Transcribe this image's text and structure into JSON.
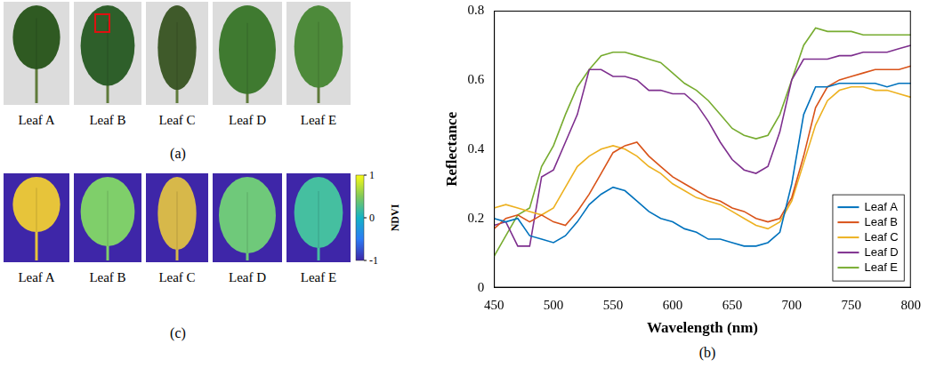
{
  "figure": {
    "a": {
      "label": "(a)",
      "leaves": [
        "Leaf A",
        "Leaf B",
        "Leaf C",
        "Leaf D",
        "Leaf E"
      ]
    },
    "c": {
      "label": "(c)",
      "leaves": [
        "Leaf A",
        "Leaf B",
        "Leaf C",
        "Leaf D",
        "Leaf E"
      ],
      "colorbar": {
        "title": "NDVI",
        "range": [
          -1,
          1
        ],
        "ticks": [
          -1,
          0,
          1
        ]
      }
    }
  },
  "chart_data": {
    "type": "line",
    "panel_label": "(b)",
    "x_label": "Wavelength (nm)",
    "y_label": "Reflectance",
    "x": [
      450,
      460,
      470,
      480,
      490,
      500,
      510,
      520,
      530,
      540,
      550,
      560,
      570,
      580,
      590,
      600,
      610,
      620,
      630,
      640,
      650,
      660,
      670,
      680,
      690,
      700,
      710,
      720,
      730,
      740,
      750,
      760,
      770,
      780,
      790,
      800
    ],
    "series": [
      {
        "name": "Leaf A",
        "color": "#0072bd",
        "values": [
          0.2,
          0.19,
          0.2,
          0.15,
          0.14,
          0.13,
          0.15,
          0.19,
          0.24,
          0.27,
          0.29,
          0.28,
          0.25,
          0.22,
          0.2,
          0.19,
          0.17,
          0.16,
          0.14,
          0.14,
          0.13,
          0.12,
          0.12,
          0.13,
          0.16,
          0.3,
          0.5,
          0.58,
          0.58,
          0.59,
          0.59,
          0.59,
          0.59,
          0.58,
          0.59,
          0.59
        ]
      },
      {
        "name": "Leaf B",
        "color": "#d95319",
        "values": [
          0.17,
          0.2,
          0.21,
          0.19,
          0.21,
          0.19,
          0.18,
          0.22,
          0.27,
          0.33,
          0.39,
          0.41,
          0.42,
          0.38,
          0.35,
          0.32,
          0.3,
          0.28,
          0.26,
          0.25,
          0.23,
          0.22,
          0.2,
          0.19,
          0.2,
          0.26,
          0.38,
          0.52,
          0.58,
          0.6,
          0.61,
          0.62,
          0.63,
          0.63,
          0.63,
          0.64
        ]
      },
      {
        "name": "Leaf C",
        "color": "#edb120",
        "values": [
          0.23,
          0.24,
          0.23,
          0.22,
          0.21,
          0.23,
          0.29,
          0.35,
          0.38,
          0.4,
          0.41,
          0.4,
          0.38,
          0.35,
          0.33,
          0.3,
          0.28,
          0.26,
          0.25,
          0.24,
          0.22,
          0.2,
          0.18,
          0.17,
          0.19,
          0.25,
          0.36,
          0.47,
          0.54,
          0.57,
          0.58,
          0.58,
          0.57,
          0.57,
          0.56,
          0.55
        ]
      },
      {
        "name": "Leaf D",
        "color": "#7e2f8e",
        "values": [
          0.18,
          0.19,
          0.12,
          0.12,
          0.32,
          0.34,
          0.42,
          0.5,
          0.63,
          0.63,
          0.61,
          0.61,
          0.6,
          0.57,
          0.57,
          0.56,
          0.56,
          0.53,
          0.48,
          0.42,
          0.37,
          0.34,
          0.33,
          0.35,
          0.45,
          0.6,
          0.66,
          0.66,
          0.66,
          0.67,
          0.67,
          0.68,
          0.68,
          0.68,
          0.69,
          0.7
        ]
      },
      {
        "name": "Leaf E",
        "color": "#77ac30",
        "values": [
          0.09,
          0.15,
          0.21,
          0.23,
          0.35,
          0.41,
          0.5,
          0.58,
          0.63,
          0.67,
          0.68,
          0.68,
          0.67,
          0.66,
          0.65,
          0.62,
          0.59,
          0.57,
          0.54,
          0.5,
          0.46,
          0.44,
          0.43,
          0.44,
          0.5,
          0.6,
          0.7,
          0.75,
          0.74,
          0.74,
          0.74,
          0.73,
          0.73,
          0.73,
          0.73,
          0.73
        ]
      }
    ],
    "xlim": [
      450,
      800
    ],
    "xticks": [
      450,
      500,
      550,
      600,
      650,
      700,
      750,
      800
    ],
    "ylim": [
      0,
      0.8
    ],
    "yticks": [
      0,
      0.2,
      0.4,
      0.6,
      0.8
    ],
    "grid": false,
    "legend": "bottom-right"
  }
}
